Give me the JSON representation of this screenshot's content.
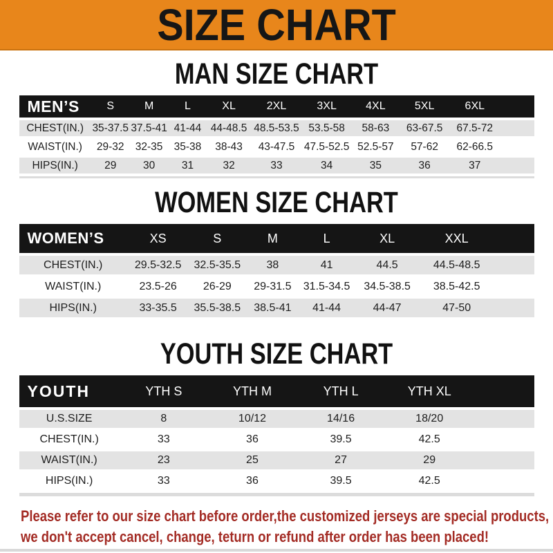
{
  "colors": {
    "banner_bg": "#E8861B",
    "banner_border": "#C9720F",
    "header_bar": "#151515",
    "row_stripe": "#E3E3E3",
    "disclaimer_red": "#A32B24"
  },
  "banner": {
    "title": "SIZE CHART"
  },
  "sections": [
    {
      "heading": "MAN SIZE CHART",
      "table": {
        "header_label": "MEN’S",
        "columns": [
          "S",
          "M",
          "L",
          "XL",
          "2XL",
          "3XL",
          "4XL",
          "5XL",
          "6XL"
        ],
        "rows": [
          {
            "label": "CHEST(IN.)",
            "values": [
              "35-37.5",
              "37.5-41",
              "41-44",
              "44-48.5",
              "48.5-53.5",
              "53.5-58",
              "58-63",
              "63-67.5",
              "67.5-72"
            ]
          },
          {
            "label": "WAIST(IN.)",
            "values": [
              "29-32",
              "32-35",
              "35-38",
              "38-43",
              "43-47.5",
              "47.5-52.5",
              "52.5-57",
              "57-62",
              "62-66.5"
            ]
          },
          {
            "label": "HIPS(IN.)",
            "values": [
              "29",
              "30",
              "31",
              "32",
              "33",
              "34",
              "35",
              "36",
              "37"
            ]
          }
        ]
      }
    },
    {
      "heading": "WOMEN SIZE CHART",
      "table": {
        "header_label": "WOMEN’S",
        "columns": [
          "XS",
          "S",
          "M",
          "L",
          "XL",
          "XXL"
        ],
        "rows": [
          {
            "label": "CHEST(IN.)",
            "values": [
              "29.5-32.5",
              "32.5-35.5",
              "38",
              "41",
              "44.5",
              "44.5-48.5"
            ]
          },
          {
            "label": "WAIST(IN.)",
            "values": [
              "23.5-26",
              "26-29",
              "29-31.5",
              "31.5-34.5",
              "34.5-38.5",
              "38.5-42.5"
            ]
          },
          {
            "label": "HIPS(IN.)",
            "values": [
              "33-35.5",
              "35.5-38.5",
              "38.5-41",
              "41-44",
              "44-47",
              "47-50"
            ]
          }
        ]
      }
    },
    {
      "heading": "YOUTH SIZE CHART",
      "table": {
        "header_label": "YOUTH",
        "columns": [
          "YTH S",
          "YTH M",
          "YTH L",
          "YTH XL"
        ],
        "rows": [
          {
            "label": "U.S.SIZE",
            "values": [
              "8",
              "10/12",
              "14/16",
              "18/20"
            ]
          },
          {
            "label": "CHEST(IN.)",
            "values": [
              "33",
              "36",
              "39.5",
              "42.5"
            ]
          },
          {
            "label": "WAIST(IN.)",
            "values": [
              "23",
              "25",
              "27",
              "29"
            ]
          },
          {
            "label": "HIPS(IN.)",
            "values": [
              "33",
              "36",
              "39.5",
              "42.5"
            ]
          }
        ]
      }
    }
  ],
  "disclaimer": {
    "lines": [
      "Please refer to our size chart before order,the customized jerseys are special products,",
      "we don't accept cancel, change, teturn or refund after order has been placed!"
    ]
  }
}
